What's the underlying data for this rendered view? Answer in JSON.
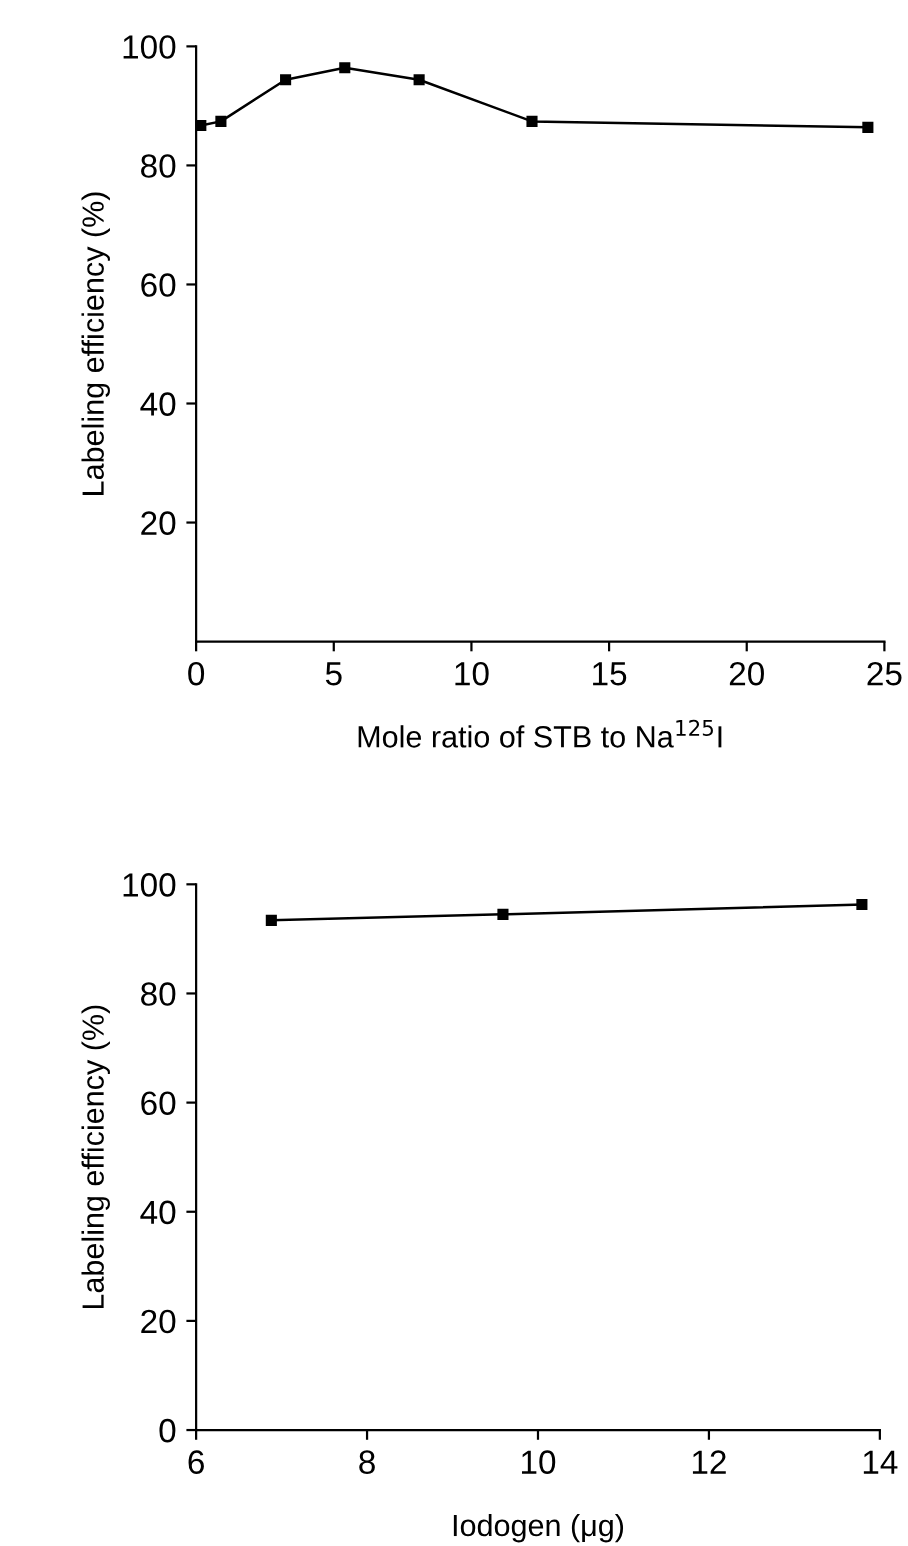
{
  "chart_data": [
    {
      "type": "line",
      "xlabel": "Mole ratio of STB to Na$^{125}$I",
      "ylabel": "Labeling efficiency (%)",
      "x": [
        0.17,
        0.9,
        3.25,
        5.4,
        8.1,
        12.2,
        24.4
      ],
      "series": [
        {
          "color": "#000000",
          "values": [
            86.7,
            87.4,
            94.4,
            96.4,
            94.4,
            87.4,
            86.4
          ]
        }
      ],
      "xlim": [
        0,
        25
      ],
      "xticks": [
        0,
        5,
        10,
        15,
        20,
        25
      ],
      "ylim": [
        0,
        100
      ],
      "yticks": [
        20,
        40,
        60,
        80,
        100
      ],
      "marker": "square",
      "line_style": "solid",
      "grid": false,
      "legend": false
    },
    {
      "type": "line",
      "xlabel": "Iodogen (μg)",
      "ylabel": "Labeling efficiency (%)",
      "x": [
        6.88,
        9.59,
        13.79
      ],
      "series": [
        {
          "color": "#000000",
          "values": [
            93.4,
            94.5,
            96.3
          ]
        }
      ],
      "xlim": [
        6,
        14
      ],
      "xticks": [
        6,
        8,
        10,
        12,
        14
      ],
      "ylim": [
        0,
        100
      ],
      "yticks": [
        0,
        20,
        40,
        60,
        80,
        100
      ],
      "marker": "square",
      "line_style": "solid",
      "grid": false,
      "legend": false
    }
  ]
}
